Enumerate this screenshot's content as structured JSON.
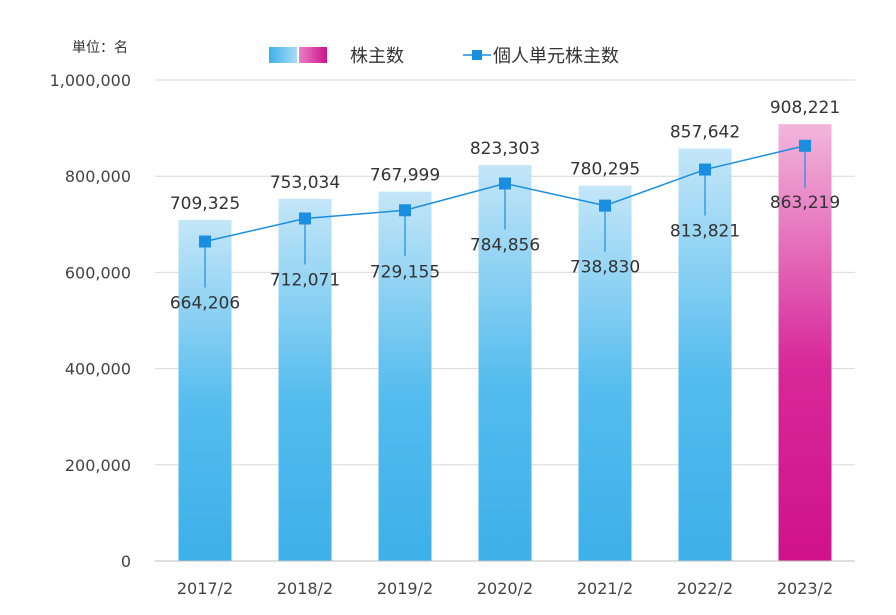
{
  "chart_data": {
    "type": "bar",
    "unit_label": "単位：名",
    "categories": [
      "2017/2",
      "2018/2",
      "2019/2",
      "2020/2",
      "2021/2",
      "2022/2",
      "2023/2"
    ],
    "series": [
      {
        "name": "株主数",
        "kind": "bar",
        "values": [
          709325,
          753034,
          767999,
          823303,
          780295,
          857642,
          908221
        ],
        "labels": [
          "709,325",
          "753,034",
          "767,999",
          "823,303",
          "780,295",
          "857,642",
          "908,221"
        ],
        "color": "#4ab4ea",
        "highlight_color": "#d4148c",
        "highlight_index": 6
      },
      {
        "name": "個人単元株主数",
        "kind": "line",
        "values": [
          664206,
          712071,
          729155,
          784856,
          738830,
          813821,
          863219
        ],
        "labels": [
          "664,206",
          "712,071",
          "729,155",
          "784,856",
          "738,830",
          "813,821",
          "863,219"
        ],
        "color": "#1a8ee0"
      }
    ],
    "ylim": [
      0,
      1000000
    ],
    "yticks": [
      0,
      200000,
      400000,
      600000,
      800000,
      1000000
    ],
    "ytick_labels": [
      "0",
      "200,000",
      "400,000",
      "600,000",
      "800,000",
      "1,000,000"
    ],
    "grid": true,
    "legend": "top-center"
  }
}
